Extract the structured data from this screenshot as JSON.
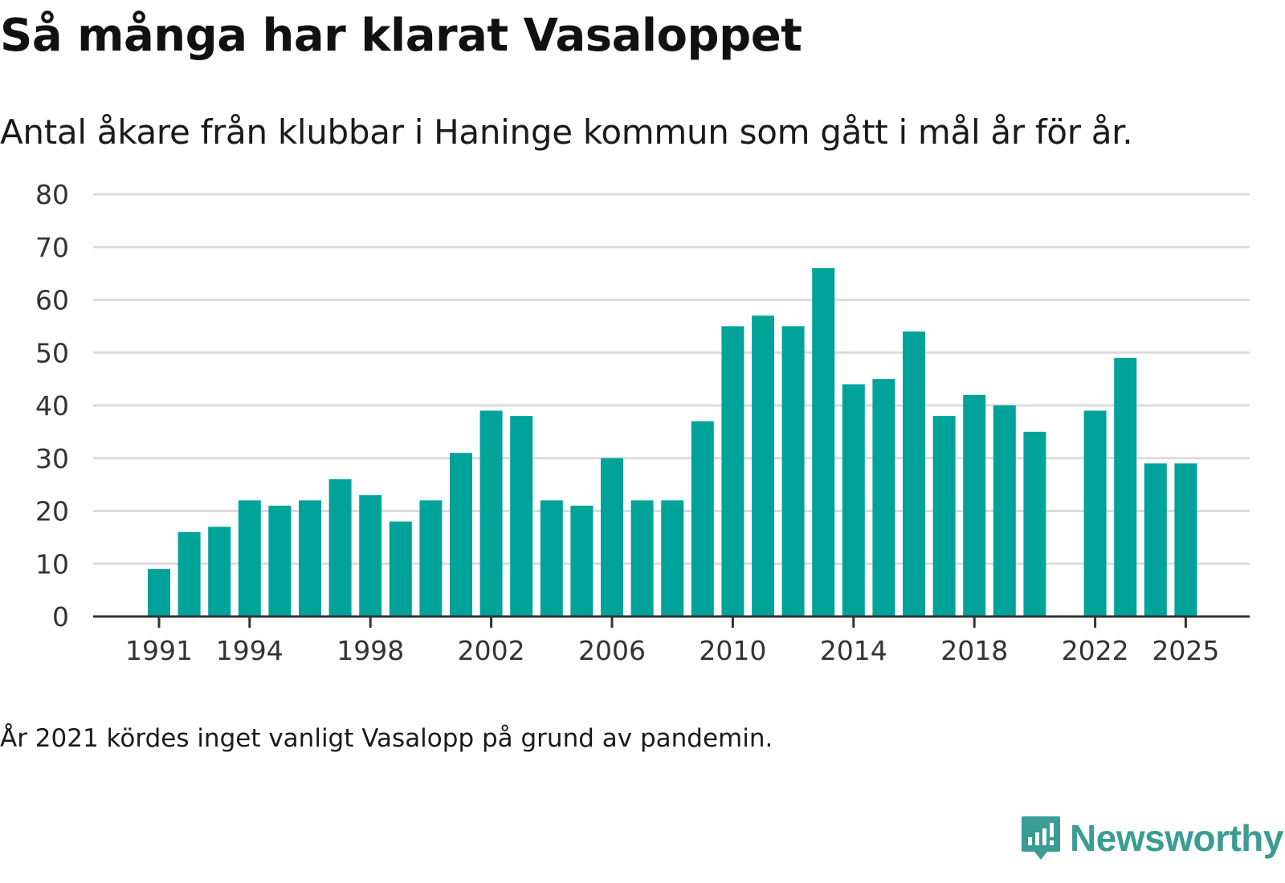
{
  "header": {
    "title": "Så många har klarat Vasaloppet",
    "subtitle": "Antal åkare från klubbar i Haninge kommun som gått i mål år för år."
  },
  "footer": {
    "note": "År 2021 kördes inget vanligt Vasalopp på grund av pandemin.",
    "brand": "Newsworthy",
    "brand_icon": "newsworthy-logo-icon"
  },
  "colors": {
    "bar": "#00a39a",
    "brand": "#3a9c93"
  },
  "chart_data": {
    "type": "bar",
    "title": "Så många har klarat Vasaloppet",
    "subtitle": "Antal åkare från klubbar i Haninge kommun som gått i mål år för år.",
    "xlabel": "",
    "ylabel": "",
    "categories": [
      1991,
      1992,
      1993,
      1994,
      1995,
      1996,
      1997,
      1998,
      1999,
      2000,
      2001,
      2002,
      2003,
      2004,
      2005,
      2006,
      2007,
      2008,
      2009,
      2010,
      2011,
      2012,
      2013,
      2014,
      2015,
      2016,
      2017,
      2018,
      2019,
      2020,
      2021,
      2022,
      2023,
      2024,
      2025
    ],
    "values": [
      9,
      16,
      17,
      22,
      21,
      22,
      26,
      23,
      18,
      22,
      31,
      39,
      38,
      22,
      21,
      30,
      22,
      22,
      37,
      55,
      57,
      55,
      66,
      44,
      45,
      54,
      38,
      42,
      40,
      35,
      null,
      39,
      49,
      29,
      29
    ],
    "x_ticks": [
      1991,
      1994,
      1998,
      2002,
      2006,
      2010,
      2014,
      2018,
      2022,
      2025
    ],
    "y_ticks": [
      0,
      10,
      20,
      30,
      40,
      50,
      60,
      70,
      80
    ],
    "ylim": [
      0,
      80
    ],
    "grid": true,
    "legend": "none"
  }
}
